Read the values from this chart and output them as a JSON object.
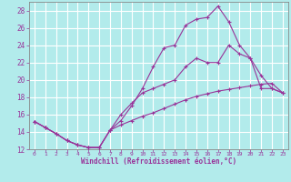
{
  "background_color": "#b2ebeb",
  "grid_color": "#ffffff",
  "line_color": "#993399",
  "marker_color": "#993399",
  "xlabel": "Windchill (Refroidissement éolien,°C)",
  "ylim": [
    12,
    29
  ],
  "xlim": [
    -0.5,
    23.5
  ],
  "yticks": [
    12,
    14,
    16,
    18,
    20,
    22,
    24,
    26,
    28
  ],
  "xticks": [
    0,
    1,
    2,
    3,
    4,
    5,
    6,
    7,
    8,
    9,
    10,
    11,
    12,
    13,
    14,
    15,
    16,
    17,
    18,
    19,
    20,
    21,
    22,
    23
  ],
  "line1_x": [
    0,
    1,
    2,
    3,
    4,
    5,
    6,
    7,
    8,
    9,
    10,
    11,
    12,
    13,
    14,
    15,
    16,
    17,
    18,
    19,
    20,
    21,
    22,
    23
  ],
  "line1_y": [
    15.2,
    14.5,
    13.8,
    13.0,
    12.5,
    12.2,
    12.2,
    14.2,
    15.3,
    17.0,
    19.0,
    21.5,
    23.7,
    24.0,
    26.3,
    27.0,
    27.2,
    28.5,
    26.7,
    24.0,
    22.5,
    19.0,
    19.0,
    18.5
  ],
  "line2_x": [
    0,
    1,
    2,
    3,
    4,
    5,
    6,
    7,
    8,
    9,
    10,
    11,
    12,
    13,
    14,
    15,
    16,
    17,
    18,
    19,
    20,
    21,
    22,
    23
  ],
  "line2_y": [
    15.2,
    14.5,
    13.8,
    13.0,
    12.5,
    12.2,
    12.2,
    14.2,
    16.0,
    17.3,
    18.5,
    19.0,
    19.5,
    20.0,
    21.5,
    22.5,
    22.0,
    22.0,
    24.0,
    23.0,
    22.5,
    20.5,
    19.0,
    18.5
  ],
  "line3_x": [
    0,
    1,
    2,
    3,
    4,
    5,
    6,
    7,
    8,
    9,
    10,
    11,
    12,
    13,
    14,
    15,
    16,
    17,
    18,
    19,
    20,
    21,
    22,
    23
  ],
  "line3_y": [
    15.2,
    14.5,
    13.8,
    13.0,
    12.5,
    12.2,
    12.2,
    14.2,
    14.8,
    15.3,
    15.8,
    16.2,
    16.7,
    17.2,
    17.7,
    18.1,
    18.4,
    18.7,
    18.9,
    19.1,
    19.3,
    19.5,
    19.6,
    18.5
  ]
}
